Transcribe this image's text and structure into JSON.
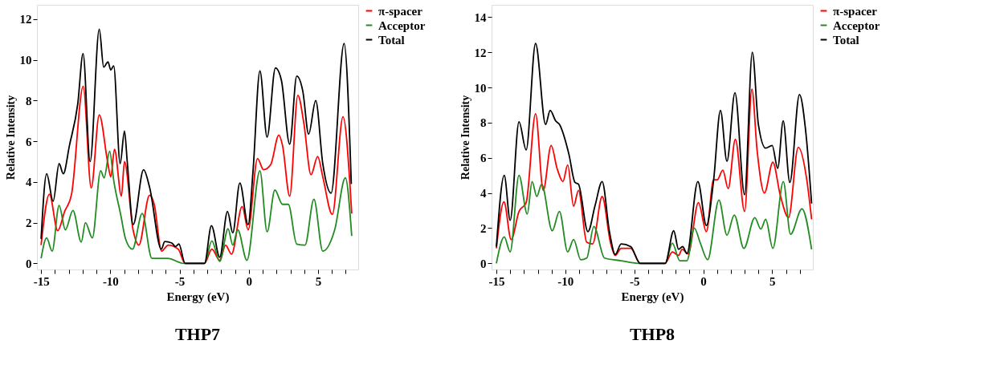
{
  "chart_data": [
    {
      "type": "line",
      "title": "THP7",
      "xlabel": "Energy (eV)",
      "ylabel": "Relative Intensity",
      "legend": "right",
      "xlim": [
        -15.3,
        7.9
      ],
      "ylim": [
        -0.3,
        12.7
      ],
      "xticks": [
        -15,
        {
          "value": -14,
          "label": null
        },
        {
          "value": -13,
          "label": null
        },
        {
          "value": -12,
          "label": null
        },
        {
          "value": -11,
          "label": null
        },
        -10,
        {
          "value": -9,
          "label": null
        },
        {
          "value": -8,
          "label": null
        },
        {
          "value": -7,
          "label": null
        },
        {
          "value": -6,
          "label": null
        },
        -5,
        {
          "value": -4,
          "label": null
        },
        {
          "value": -3,
          "label": null
        },
        {
          "value": -2,
          "label": null
        },
        {
          "value": -1,
          "label": null
        },
        0,
        {
          "value": 1,
          "label": null
        },
        {
          "value": 2,
          "label": null
        },
        {
          "value": 3,
          "label": null
        },
        {
          "value": 4,
          "label": null
        },
        5,
        {
          "value": 6,
          "label": null
        },
        {
          "value": 7,
          "label": null
        }
      ],
      "yticks": [
        0,
        2,
        4,
        6,
        8,
        10,
        12
      ],
      "series": [
        {
          "name": "π-spacer",
          "color": "#ff0000",
          "x": [
            -15,
            -14.4,
            -13.8,
            -13.3,
            -12.8,
            -11.96,
            -11.38,
            -10.8,
            -10.2,
            -9.97,
            -9.7,
            -9.2,
            -8.98,
            -8.36,
            -7.94,
            -7.17,
            -6.83,
            -6.3,
            -5.82,
            -5.1,
            -4.6,
            -3.2,
            -2.67,
            -2.1,
            -1.68,
            -1.25,
            -0.48,
            -0.05,
            0.63,
            1.06,
            1.58,
            2.17,
            2.43,
            2.95,
            3.54,
            3.97,
            4.49,
            4.97,
            5.34,
            6.03,
            6.8,
            7.43
          ],
          "values": [
            0.9,
            3.4,
            1.6,
            2.55,
            3.4,
            8.7,
            3.7,
            7.3,
            5.0,
            4.25,
            5.6,
            3.3,
            5.0,
            1.65,
            0.9,
            3.35,
            2.9,
            0.6,
            0.9,
            0.7,
            0,
            0,
            0.7,
            0.15,
            0.9,
            0.45,
            2.8,
            1.65,
            5.15,
            4.6,
            4.85,
            6.3,
            5.8,
            3.3,
            8.25,
            6.9,
            4.35,
            5.25,
            4.25,
            2.4,
            7.2,
            2.45
          ]
        },
        {
          "name": "Acceptor",
          "color": "#228b22",
          "x": [
            -15,
            -14.6,
            -14.2,
            -13.7,
            -13.25,
            -12.7,
            -12.1,
            -11.8,
            -11.3,
            -10.7,
            -10.45,
            -10.05,
            -9.75,
            -9.24,
            -8.9,
            -8.4,
            -7.7,
            -7.0,
            -5.86,
            -4.7,
            -3.2,
            -2.67,
            -2.1,
            -1.5,
            -1.16,
            -0.8,
            -0.14,
            0.8,
            1.32,
            1.88,
            2.43,
            2.85,
            3.46,
            4.06,
            4.7,
            5.34,
            6.2,
            6.97,
            7.43
          ],
          "values": [
            0.25,
            1.25,
            0.6,
            2.85,
            1.65,
            2.6,
            1.05,
            2.0,
            1.25,
            4.55,
            4.2,
            5.5,
            4.05,
            2.35,
            1.2,
            0.7,
            2.45,
            0.25,
            0.25,
            0,
            0,
            1.1,
            0.1,
            1.7,
            0.9,
            1.65,
            0.15,
            4.55,
            1.55,
            3.6,
            2.9,
            2.9,
            0.95,
            0.9,
            3.15,
            0.6,
            1.65,
            4.2,
            1.35
          ]
        },
        {
          "name": "Total",
          "color": "#000000",
          "x": [
            -15,
            -14.6,
            -14.13,
            -13.7,
            -13.4,
            -12.95,
            -12.35,
            -11.97,
            -11.46,
            -10.8,
            -10.48,
            -10.17,
            -9.97,
            -9.76,
            -9.29,
            -8.98,
            -8.78,
            -8.35,
            -7.6,
            -7.17,
            -6.32,
            -6.07,
            -5.56,
            -5.3,
            -5.05,
            -4.6,
            -3.2,
            -2.7,
            -2.1,
            -1.54,
            -1.16,
            -0.65,
            -0.05,
            0.3,
            0.8,
            1.32,
            1.92,
            2.35,
            2.95,
            3.46,
            3.9,
            4.32,
            4.83,
            5.34,
            5.94,
            6.88,
            7.4
          ],
          "values": [
            1.2,
            4.4,
            3.05,
            4.9,
            4.4,
            5.8,
            7.85,
            10.3,
            5.0,
            11.5,
            9.64,
            9.9,
            9.5,
            9.7,
            4.9,
            6.5,
            5.0,
            1.9,
            4.6,
            3.75,
            0.7,
            1.07,
            1.0,
            0.83,
            0.95,
            0,
            0,
            1.85,
            0.3,
            2.55,
            1.5,
            3.95,
            1.9,
            4.5,
            9.45,
            6.2,
            9.6,
            9.0,
            5.85,
            9.2,
            8.45,
            6.35,
            8.0,
            4.9,
            3.45,
            10.8,
            3.9
          ]
        }
      ]
    },
    {
      "type": "line",
      "title": "THP8",
      "xlabel": "Energy (eV)",
      "ylabel": "Relative Intensity",
      "legend": "right",
      "xlim": [
        -15.35,
        7.95
      ],
      "ylim": [
        -0.35,
        14.7
      ],
      "xticks": [
        -15,
        {
          "value": -14,
          "label": null
        },
        {
          "value": -13,
          "label": null
        },
        {
          "value": -12,
          "label": null
        },
        {
          "value": -11,
          "label": null
        },
        -10,
        {
          "value": -9,
          "label": null
        },
        {
          "value": -8,
          "label": null
        },
        {
          "value": -7,
          "label": null
        },
        {
          "value": -6,
          "label": null
        },
        -5,
        {
          "value": -4,
          "label": null
        },
        {
          "value": -3,
          "label": null
        },
        {
          "value": -2,
          "label": null
        },
        {
          "value": -1,
          "label": null
        },
        0,
        {
          "value": 1,
          "label": null
        },
        {
          "value": 2,
          "label": null
        },
        {
          "value": 3,
          "label": null
        },
        {
          "value": 4,
          "label": null
        },
        5,
        {
          "value": 6,
          "label": null
        },
        {
          "value": 7,
          "label": null
        }
      ],
      "yticks": [
        0,
        2,
        4,
        6,
        8,
        10,
        12,
        14
      ],
      "series": [
        {
          "name": "π-spacer",
          "color": "#ff0000",
          "x": [
            -15,
            -14.45,
            -13.93,
            -13.36,
            -12.84,
            -12.16,
            -11.6,
            -11.03,
            -10.6,
            -10.17,
            -9.83,
            -9.4,
            -9.05,
            -8.45,
            -8.02,
            -7.33,
            -6.72,
            -6.38,
            -5.95,
            -5.26,
            -4.57,
            -2.76,
            -2.24,
            -1.79,
            -1.53,
            -1.09,
            -0.35,
            0.23,
            0.75,
            1.02,
            1.42,
            1.81,
            2.33,
            3.0,
            3.53,
            3.91,
            4.44,
            5.05,
            5.58,
            6.19,
            6.89,
            7.51,
            7.86
          ],
          "values": [
            0.85,
            3.5,
            1.35,
            2.95,
            3.45,
            8.5,
            4.15,
            6.7,
            5.4,
            4.65,
            5.6,
            3.25,
            4.15,
            1.2,
            1.1,
            3.8,
            1.15,
            0.45,
            0.85,
            0.85,
            0,
            0,
            0.65,
            0.45,
            0.8,
            0.55,
            3.45,
            1.8,
            4.75,
            4.75,
            5.3,
            4.25,
            7.05,
            2.95,
            9.9,
            6.4,
            4.0,
            5.75,
            3.9,
            2.6,
            6.6,
            4.75,
            2.5
          ]
        },
        {
          "name": "Acceptor",
          "color": "#228b22",
          "x": [
            -15,
            -14.43,
            -14.0,
            -13.36,
            -12.76,
            -12.41,
            -12.07,
            -11.72,
            -10.95,
            -10.43,
            -9.83,
            -9.4,
            -8.88,
            -8.45,
            -7.93,
            -7.16,
            -5.95,
            -4.57,
            -2.76,
            -2.24,
            -1.7,
            -1.18,
            -0.65,
            -0.21,
            0.32,
            1.14,
            1.72,
            2.25,
            2.95,
            3.74,
            4.18,
            4.53,
            5.05,
            5.81,
            6.33,
            7.16,
            7.86
          ],
          "values": [
            0,
            1.5,
            0.65,
            5.0,
            2.8,
            4.65,
            3.8,
            4.5,
            1.85,
            2.95,
            0.65,
            1.35,
            0.2,
            0.3,
            2.1,
            0.3,
            0.15,
            0,
            0,
            1.15,
            0.15,
            0.15,
            2.0,
            1.15,
            0.2,
            3.6,
            1.6,
            2.75,
            0.85,
            2.6,
            1.95,
            2.5,
            0.85,
            4.65,
            1.65,
            3.1,
            0.8
          ]
        },
        {
          "name": "Total",
          "color": "#000000",
          "x": [
            -15,
            -14.43,
            -14.0,
            -13.36,
            -12.84,
            -12.16,
            -11.43,
            -11.1,
            -10.7,
            -10.43,
            -9.74,
            -9.3,
            -9.05,
            -8.36,
            -7.84,
            -7.33,
            -6.8,
            -6.38,
            -5.95,
            -5.26,
            -4.57,
            -2.76,
            -2.14,
            -1.79,
            -1.49,
            -1.18,
            -0.39,
            0.23,
            0.75,
            1.25,
            1.72,
            2.3,
            3.0,
            3.56,
            4.0,
            4.53,
            5.0,
            5.4,
            5.8,
            6.28,
            6.98,
            7.42,
            7.86
          ],
          "values": [
            0.95,
            5.0,
            2.45,
            8.05,
            6.45,
            12.5,
            7.9,
            8.7,
            8.1,
            7.9,
            6.2,
            4.6,
            4.5,
            1.8,
            3.3,
            4.65,
            1.8,
            0.5,
            1.1,
            0.95,
            0,
            0,
            1.85,
            0.8,
            0.95,
            0.55,
            4.65,
            2.15,
            4.7,
            8.7,
            5.8,
            9.7,
            3.9,
            12.0,
            7.9,
            6.55,
            6.7,
            5.4,
            8.1,
            4.6,
            9.6,
            7.6,
            3.4
          ]
        }
      ]
    }
  ]
}
